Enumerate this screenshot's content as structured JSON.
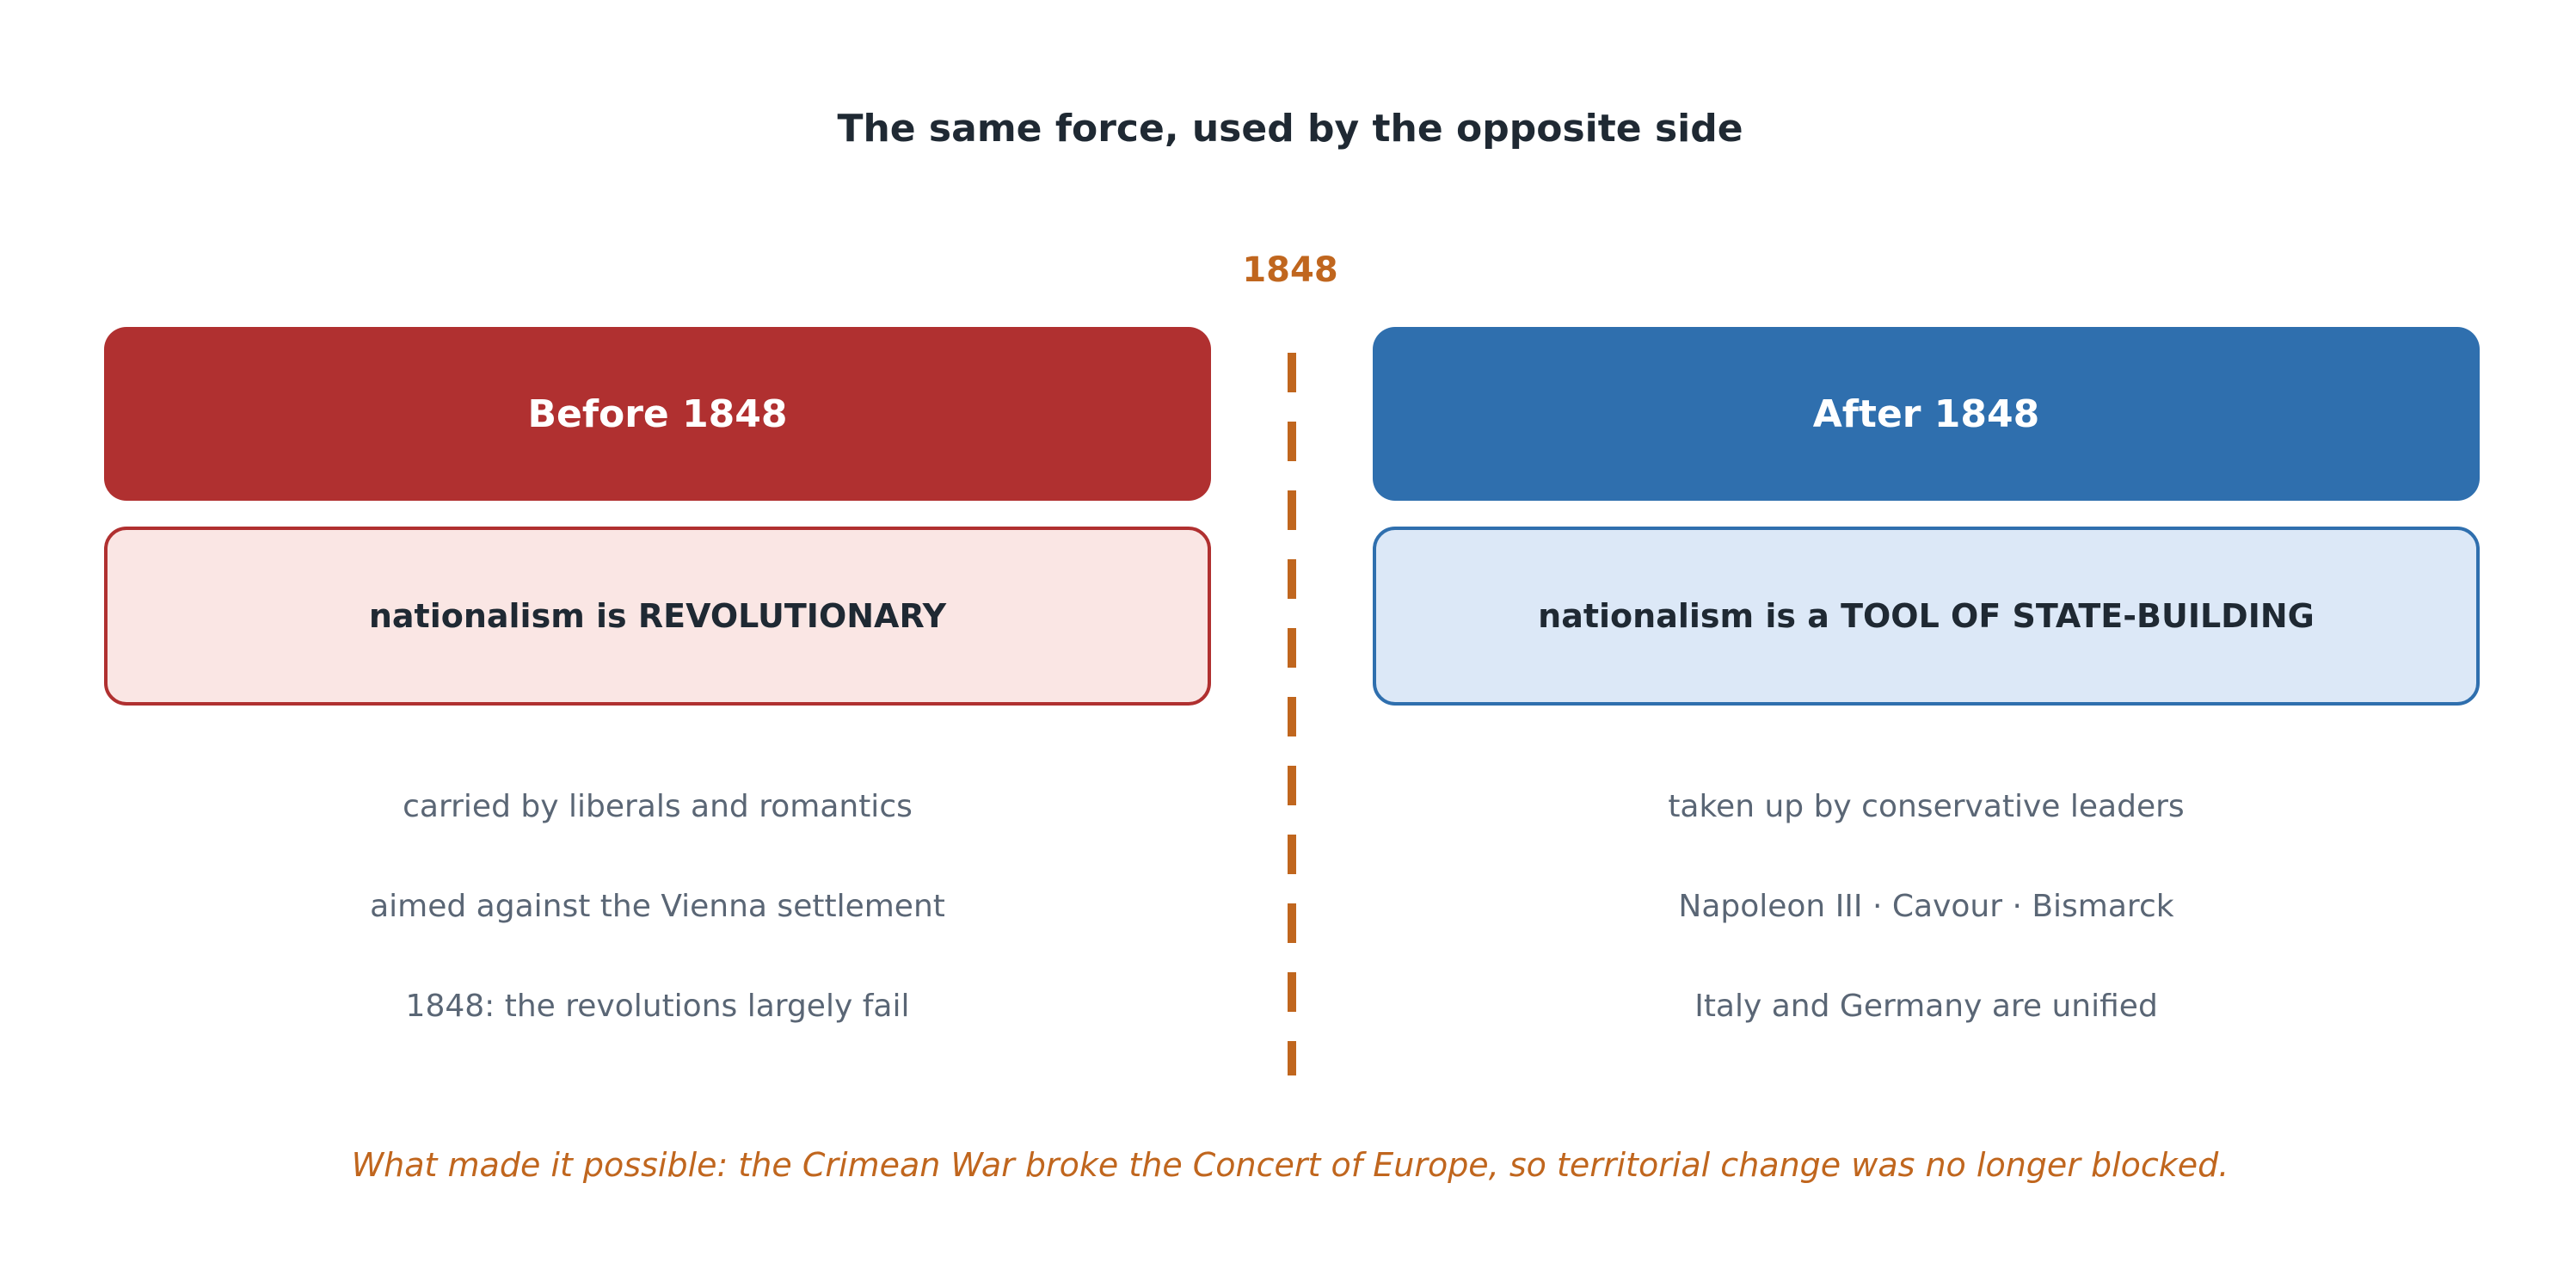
{
  "title": "The same force, used by the opposite side",
  "year_marker": "1848",
  "colors": {
    "before": "#b03030",
    "before_light": "#fae6e4",
    "after": "#2f6fae",
    "after_light": "#dce8f7",
    "accent": "#c0661e"
  },
  "before": {
    "header": "Before 1848",
    "claim": "nationalism is REVOLUTIONARY",
    "points": [
      "carried by liberals and romantics",
      "aimed against the Vienna settlement",
      "1848: the revolutions largely fail"
    ]
  },
  "after": {
    "header": "After 1848",
    "claim": "nationalism is a TOOL OF STATE-BUILDING",
    "points": [
      "taken up by conservative leaders",
      "Napoleon III  ·  Cavour  ·  Bismarck",
      "Italy and Germany are unified"
    ]
  },
  "footnote": "What made it possible: the Crimean War broke the Concert of Europe, so territorial change was no longer blocked."
}
